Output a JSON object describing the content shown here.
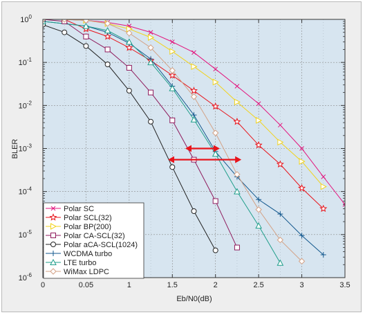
{
  "chart_data": {
    "type": "line",
    "xlabel": "Eb/N0(dB)",
    "ylabel": "BLER",
    "y_scale": "log",
    "xlim": [
      0,
      3.5
    ],
    "ylim": [
      1e-06,
      1
    ],
    "x_tick_labels": [
      "0",
      "0.05",
      "1",
      "1.5",
      "2",
      "2.5",
      "3",
      "3.5"
    ],
    "y_tick_labels": [
      {
        "base": "10",
        "exp": "0"
      },
      {
        "base": "10",
        "exp": "-1"
      },
      {
        "base": "10",
        "exp": "-2"
      },
      {
        "base": "10",
        "exp": "-3"
      },
      {
        "base": "10",
        "exp": "-4"
      },
      {
        "base": "10",
        "exp": "-5"
      },
      {
        "base": "10",
        "exp": "-6"
      }
    ],
    "grid": true,
    "legend_position": "bottom-left",
    "plot_background": "#d7e5f0",
    "annotations": [
      {
        "type": "double-arrow",
        "color": "#e8141b",
        "x1": 1.65,
        "x2": 2.05,
        "y": 0.001
      },
      {
        "type": "double-arrow",
        "color": "#e8141b",
        "x1": 1.45,
        "x2": 2.3,
        "y": 0.00055
      }
    ],
    "series": [
      {
        "name": "Polar SC",
        "marker": "x",
        "color": "#e3147d",
        "x": [
          0,
          0.25,
          0.5,
          0.75,
          1,
          1.25,
          1.5,
          1.75,
          2,
          2.25,
          2.5,
          2.75,
          3,
          3.25,
          3.5
        ],
        "y": [
          1,
          1,
          0.95,
          0.85,
          0.7,
          0.5,
          0.3,
          0.17,
          0.07,
          0.028,
          0.011,
          0.0035,
          0.001,
          0.00022,
          5e-05
        ]
      },
      {
        "name": "Polar SCL(32)",
        "marker": "star",
        "color": "#e8141b",
        "x": [
          0,
          0.25,
          0.5,
          0.75,
          1,
          1.25,
          1.5,
          1.75,
          2,
          2.25,
          2.5,
          2.75,
          3,
          3.25
        ],
        "y": [
          1,
          1,
          0.6,
          0.4,
          0.22,
          0.11,
          0.05,
          0.022,
          0.0095,
          0.0042,
          0.0012,
          0.00043,
          0.00012,
          4e-05
        ]
      },
      {
        "name": "Polar BP(200)",
        "marker": "triangle-right",
        "color": "#f2d31c",
        "x": [
          0,
          0.25,
          0.5,
          0.75,
          1,
          1.25,
          1.5,
          1.75,
          2,
          2.25,
          2.5,
          2.75,
          3,
          3.25
        ],
        "y": [
          1,
          1,
          0.95,
          0.8,
          0.6,
          0.38,
          0.18,
          0.08,
          0.035,
          0.012,
          0.0045,
          0.0014,
          0.0005,
          0.00013
        ]
      },
      {
        "name": "Polar CA-SCL(32)",
        "marker": "square",
        "color": "#8e1a5c",
        "x": [
          0,
          0.25,
          0.5,
          0.75,
          1,
          1.25,
          1.5,
          1.75,
          2,
          2.25
        ],
        "y": [
          1,
          0.9,
          0.4,
          0.2,
          0.075,
          0.02,
          0.0045,
          0.00055,
          6e-05,
          5e-06
        ]
      },
      {
        "name": "Polar aCA-SCL(1024)",
        "marker": "circle",
        "color": "#222222",
        "x": [
          0,
          0.25,
          0.5,
          0.75,
          1,
          1.25,
          1.5,
          1.75,
          2
        ],
        "y": [
          0.75,
          0.5,
          0.24,
          0.09,
          0.022,
          0.0042,
          0.00037,
          3.5e-05,
          4.3e-06
        ]
      },
      {
        "name": "WCDMA turbo",
        "marker": "plus",
        "color": "#12578d",
        "x": [
          0,
          0.5,
          0.75,
          1,
          1.25,
          1.5,
          1.75,
          2,
          2.25,
          2.5,
          2.75,
          3,
          3.25
        ],
        "y": [
          0.9,
          0.7,
          0.5,
          0.28,
          0.12,
          0.028,
          0.006,
          0.00085,
          0.00022,
          6.5e-05,
          3e-05,
          9.5e-06,
          3.4e-06
        ]
      },
      {
        "name": "LTE turbo",
        "marker": "triangle-up",
        "color": "#1f9e8a",
        "x": [
          0,
          0.5,
          0.75,
          1,
          1.25,
          1.5,
          1.75,
          2,
          2.25,
          2.5,
          2.75
        ],
        "y": [
          0.9,
          0.7,
          0.55,
          0.3,
          0.1,
          0.025,
          0.0047,
          0.00075,
          0.0001,
          1.6e-05,
          2.2e-06
        ]
      },
      {
        "name": "WiMax LDPC",
        "marker": "diamond",
        "color": "#d3a286",
        "x": [
          0,
          0.25,
          0.5,
          0.75,
          1,
          1.25,
          1.5,
          1.75,
          2,
          2.25,
          2.5,
          2.75,
          3
        ],
        "y": [
          1,
          1,
          0.95,
          0.8,
          0.48,
          0.22,
          0.065,
          0.016,
          0.0023,
          0.00025,
          3.8e-05,
          7.5e-06,
          2.4e-06
        ]
      }
    ]
  }
}
